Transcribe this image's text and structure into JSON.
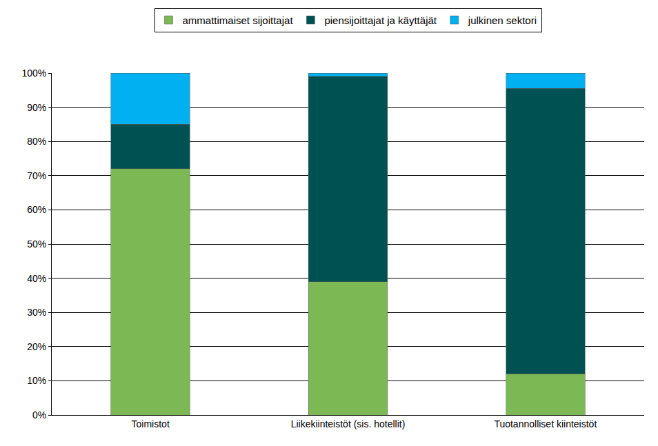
{
  "chart_data": {
    "type": "bar",
    "stacked": true,
    "categories": [
      "Toimistot",
      "Liikekiinteistöt (sis. hotellit)",
      "Tuotannolliset kiinteistöt"
    ],
    "series": [
      {
        "name": "ammattimaiset sijoittajat",
        "color": "#7cb955",
        "values": [
          72,
          39,
          12
        ]
      },
      {
        "name": "piensijoittajat ja käyttäjät",
        "color": "#005252",
        "values": [
          13,
          60,
          83.5
        ]
      },
      {
        "name": "julkinen sektori",
        "color": "#00b0f0",
        "values": [
          15,
          1,
          4.5
        ]
      }
    ],
    "ylim": [
      0,
      100
    ],
    "yticks": [
      {
        "value": 0,
        "label": "0%"
      },
      {
        "value": 10,
        "label": "10%"
      },
      {
        "value": 20,
        "label": "20%"
      },
      {
        "value": 30,
        "label": "30%"
      },
      {
        "value": 40,
        "label": "40%"
      },
      {
        "value": 50,
        "label": "50%"
      },
      {
        "value": 60,
        "label": "60%"
      },
      {
        "value": 70,
        "label": "70%"
      },
      {
        "value": 80,
        "label": "80%"
      },
      {
        "value": 90,
        "label": "90%"
      },
      {
        "value": 100,
        "label": "100%"
      }
    ],
    "grid": true,
    "legend": "top"
  }
}
